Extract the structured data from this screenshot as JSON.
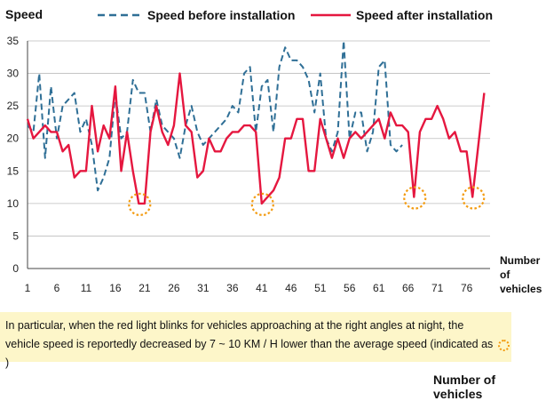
{
  "chart_data": {
    "type": "line",
    "ylabel": "Speed",
    "xlabel": "Number of vehicles",
    "ylim": [
      0,
      35
    ],
    "xlim": [
      1,
      80
    ],
    "yticks": [
      0,
      5,
      10,
      15,
      20,
      25,
      30,
      35
    ],
    "xticks": [
      1,
      6,
      11,
      16,
      21,
      26,
      31,
      36,
      41,
      46,
      51,
      56,
      61,
      66,
      71,
      76
    ],
    "grid": "horizontal",
    "legend": "top",
    "series": [
      {
        "name": "Speed before installation",
        "color": "#2f6f96",
        "style": "dashed",
        "x": [
          1,
          2,
          3,
          4,
          5,
          6,
          7,
          8,
          9,
          10,
          11,
          12,
          13,
          14,
          15,
          16,
          17,
          18,
          19,
          20,
          21,
          22,
          23,
          24,
          25,
          26,
          27,
          28,
          29,
          30,
          31,
          32,
          33,
          34,
          35,
          36,
          37,
          38,
          39,
          40,
          41,
          42,
          43,
          44,
          45,
          46,
          47,
          48,
          49,
          50,
          51,
          52,
          53,
          54,
          55,
          56,
          57,
          58,
          59,
          60,
          61,
          62,
          63,
          64,
          65
        ],
        "values": [
          22,
          21,
          30,
          17,
          28,
          20,
          25,
          26,
          27,
          21,
          23,
          19,
          12,
          14,
          17,
          27,
          20,
          21,
          29,
          27,
          27,
          21,
          26,
          22,
          21,
          20,
          17,
          22,
          25,
          21,
          19,
          20,
          21,
          22,
          23,
          25,
          24,
          30,
          31,
          21,
          28,
          29,
          21,
          31,
          34,
          32,
          32,
          31,
          29,
          24,
          30,
          20,
          18,
          21,
          35,
          20,
          24,
          24,
          18,
          21,
          31,
          32,
          19,
          18,
          19
        ]
      },
      {
        "name": "Speed after installation",
        "color": "#e5173f",
        "style": "solid",
        "x": [
          1,
          2,
          3,
          4,
          5,
          6,
          7,
          8,
          9,
          10,
          11,
          12,
          13,
          14,
          15,
          16,
          17,
          18,
          19,
          20,
          21,
          22,
          23,
          24,
          25,
          26,
          27,
          28,
          29,
          30,
          31,
          32,
          33,
          34,
          35,
          36,
          37,
          38,
          39,
          40,
          41,
          42,
          43,
          44,
          45,
          46,
          47,
          48,
          49,
          50,
          51,
          52,
          53,
          54,
          55,
          56,
          57,
          58,
          59,
          60,
          61,
          62,
          63,
          64,
          65,
          66,
          67,
          68,
          69,
          70,
          71,
          72,
          73,
          74,
          75,
          76,
          77,
          78,
          79
        ],
        "values": [
          23,
          20,
          21,
          22,
          21,
          21,
          18,
          19,
          14,
          15,
          15,
          25,
          18,
          22,
          20,
          28,
          15,
          21,
          15,
          10,
          10,
          21,
          25,
          21,
          19,
          22,
          30,
          22,
          21,
          14,
          15,
          20,
          18,
          18,
          20,
          21,
          21,
          22,
          22,
          21,
          10,
          11,
          12,
          14,
          20,
          20,
          23,
          23,
          15,
          15,
          23,
          20,
          17,
          20,
          17,
          20,
          21,
          20,
          21,
          22,
          23,
          20,
          24,
          22,
          22,
          21,
          11,
          21,
          23,
          23,
          25,
          23,
          20,
          21,
          18,
          18,
          11,
          19,
          27
        ]
      }
    ],
    "highlights_x": [
      20,
      41,
      67,
      77
    ]
  },
  "note": {
    "line1": "In particular, when the red light blinks for vehicles approaching at the right angles at night, the",
    "line2": "vehicle speed is reportedly decreased by 7 ~ 10 KM / H lower than the average speed (indicated as",
    "line2_end": ")"
  },
  "footer": "Number of vehicles",
  "xaxis_label": {
    "line1": "Number",
    "line2": "of",
    "line3": "vehicles"
  }
}
